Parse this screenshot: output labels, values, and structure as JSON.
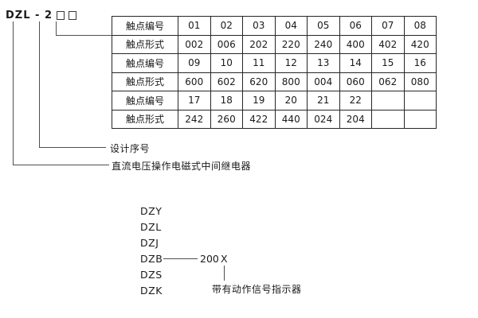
{
  "title": {
    "model": "DZL - 2",
    "digit_boxes": 2
  },
  "table": {
    "rows": [
      {
        "header": "触点编号",
        "cells": [
          "01",
          "02",
          "03",
          "04",
          "05",
          "06",
          "07",
          "08"
        ]
      },
      {
        "header": "触点形式",
        "cells": [
          "002",
          "006",
          "202",
          "220",
          "240",
          "400",
          "402",
          "420"
        ]
      },
      {
        "header": "触点编号",
        "cells": [
          "09",
          "10",
          "11",
          "12",
          "13",
          "14",
          "15",
          "16"
        ]
      },
      {
        "header": "触点形式",
        "cells": [
          "600",
          "602",
          "620",
          "800",
          "004",
          "060",
          "062",
          "080"
        ]
      },
      {
        "header": "触点编号",
        "cells": [
          "17",
          "18",
          "19",
          "20",
          "21",
          "22",
          "",
          ""
        ]
      },
      {
        "header": "触点形式",
        "cells": [
          "242",
          "260",
          "422",
          "440",
          "024",
          "204",
          "",
          ""
        ]
      }
    ]
  },
  "callouts": {
    "design_serial": "设计序号",
    "relay_type": "直流电压操作电磁式中间继电器"
  },
  "model_series": {
    "codes": [
      "DZY",
      "DZL",
      "DZJ",
      "DZB",
      "DZS",
      "DZK"
    ],
    "dzb_number": "200",
    "dzb_variant": "X",
    "variant_note": "带有动作信号指示器"
  },
  "colors": {
    "text": "#1a1a1a",
    "line": "#4f4f4f",
    "table_border": "#262626",
    "background": "#ffffff"
  }
}
